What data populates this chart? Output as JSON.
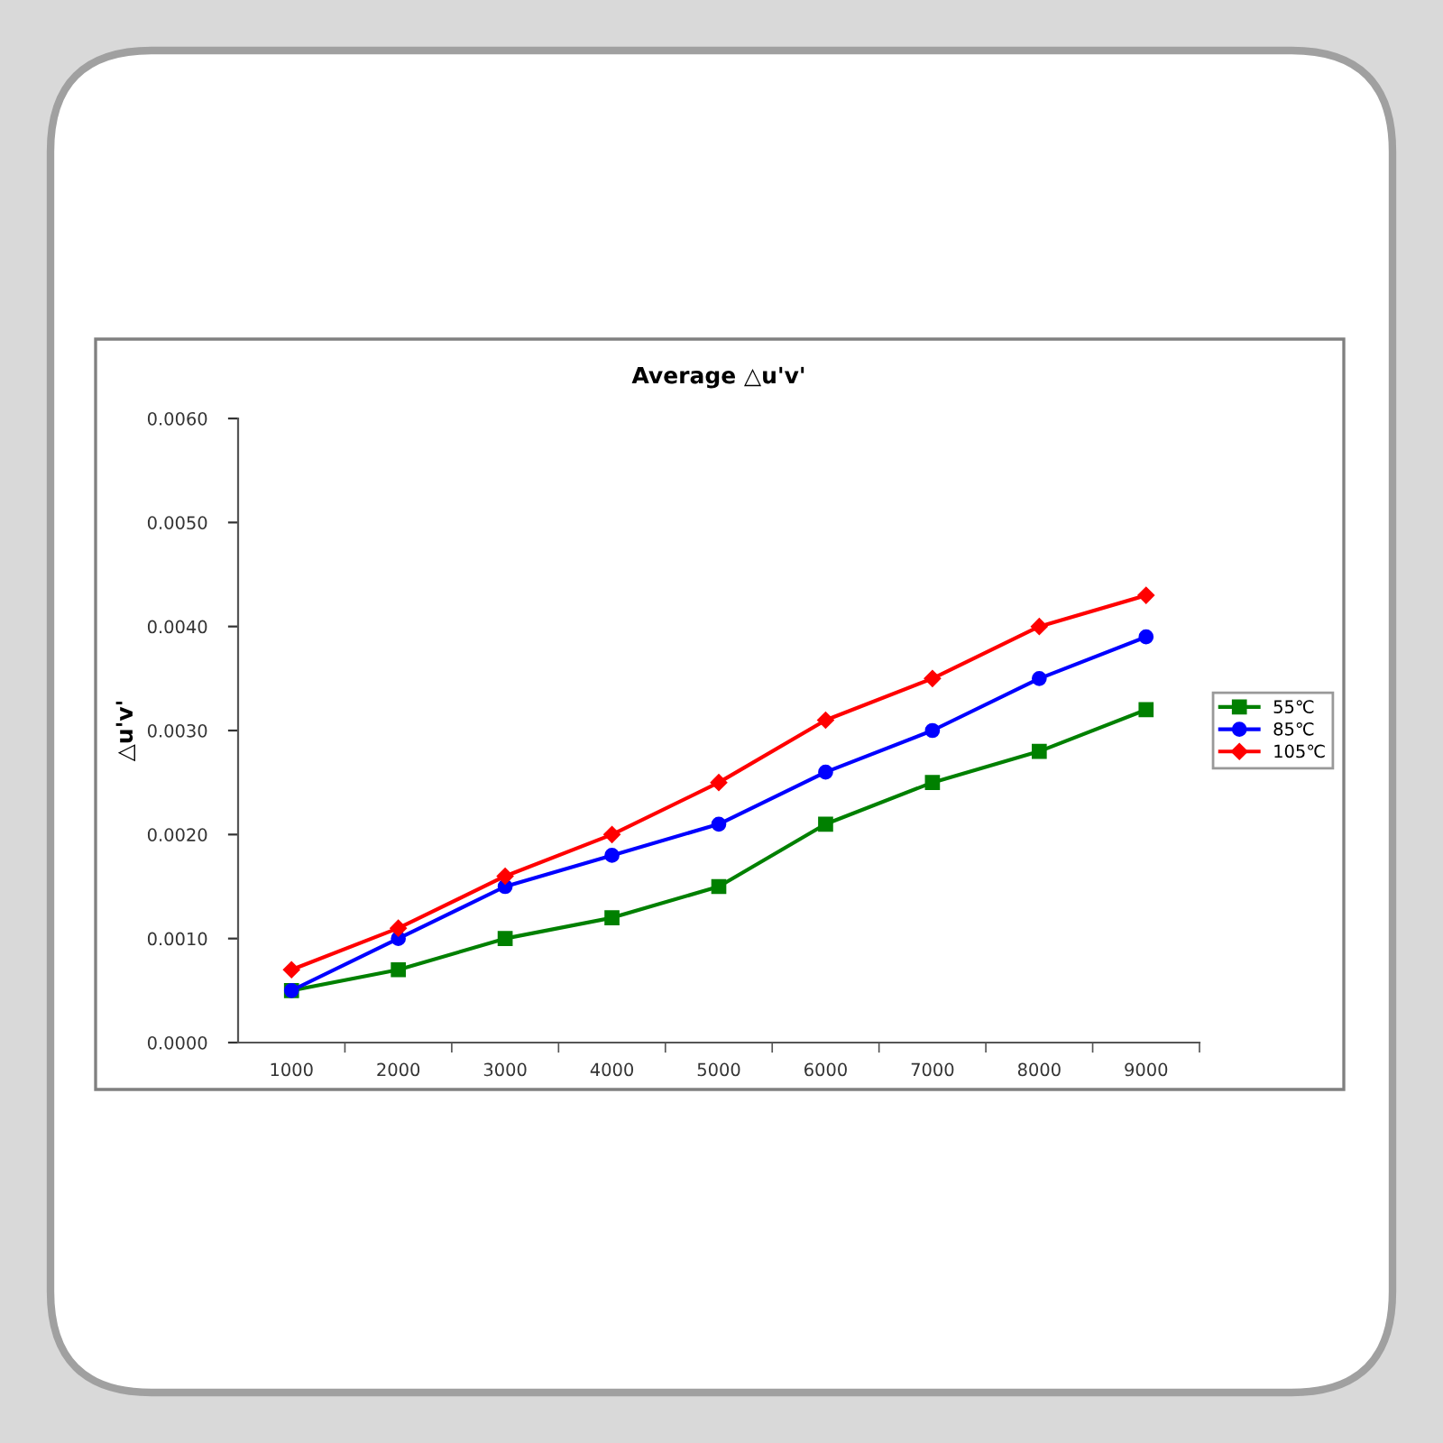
{
  "chart_data": {
    "type": "line",
    "title": "Average △u'v'",
    "ylabel": "△u'v'",
    "categories": [
      "1000",
      "2000",
      "3000",
      "4000",
      "5000",
      "6000",
      "7000",
      "8000",
      "9000"
    ],
    "ylim": [
      0,
      0.006
    ],
    "yticks": [
      {
        "value": 0,
        "label": "0.0000"
      },
      {
        "value": 0.001,
        "label": "0.0010"
      },
      {
        "value": 0.002,
        "label": "0.0020"
      },
      {
        "value": 0.003,
        "label": "0.0030"
      },
      {
        "value": 0.004,
        "label": "0.0040"
      },
      {
        "value": 0.005,
        "label": "0.0050"
      },
      {
        "value": 0.006,
        "label": "0.0060"
      }
    ],
    "grid": false,
    "legend": "right",
    "line_style": "solid",
    "series": [
      {
        "name": "55℃",
        "color": "#008000",
        "marker": "square",
        "values": [
          0.0005,
          0.0007,
          0.001,
          0.0012,
          0.0015,
          0.0021,
          0.0025,
          0.0028,
          0.0032
        ]
      },
      {
        "name": "85℃",
        "color": "#0000ff",
        "marker": "circle",
        "values": [
          0.0005,
          0.001,
          0.0015,
          0.0018,
          0.0021,
          0.0026,
          0.003,
          0.0035,
          0.0039
        ]
      },
      {
        "name": "105℃",
        "color": "#ff0000",
        "marker": "diamond",
        "values": [
          0.0007,
          0.0011,
          0.0016,
          0.002,
          0.0025,
          0.0031,
          0.0035,
          0.004,
          0.0043
        ]
      }
    ]
  }
}
